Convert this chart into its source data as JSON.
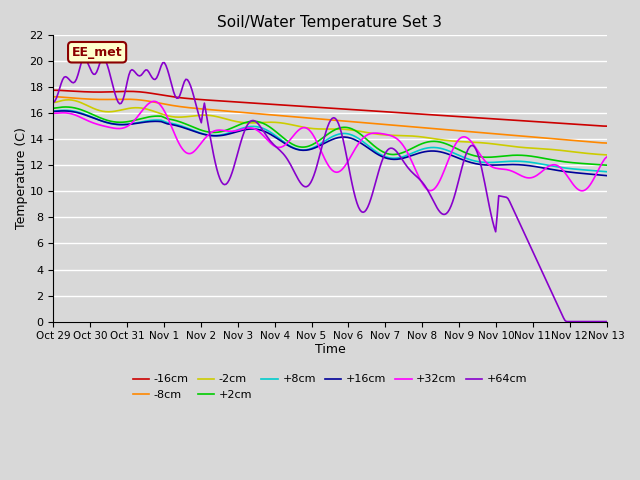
{
  "title": "Soil/Water Temperature Set 3",
  "xlabel": "Time",
  "ylabel": "Temperature (C)",
  "ylim": [
    0,
    22
  ],
  "yticks": [
    0,
    2,
    4,
    6,
    8,
    10,
    12,
    14,
    16,
    18,
    20,
    22
  ],
  "xtick_labels": [
    "Oct 29",
    "Oct 30",
    "Oct 31",
    "Nov 1",
    "Nov 2",
    "Nov 3",
    "Nov 4",
    "Nov 5",
    "Nov 6",
    "Nov 7",
    "Nov 8",
    "Nov 9",
    "Nov 10",
    "Nov 11",
    "Nov 12",
    "Nov 13"
  ],
  "background_color": "#d8d8d8",
  "annotation_text": "EE_met",
  "annotation_bg": "#ffffcc",
  "annotation_border": "#8b0000",
  "legend_entries": [
    "-16cm",
    "-8cm",
    "-2cm",
    "+2cm",
    "+8cm",
    "+16cm",
    "+32cm",
    "+64cm"
  ],
  "line_colors": [
    "#cc0000",
    "#ff8800",
    "#cccc00",
    "#00cc00",
    "#00cccc",
    "#000099",
    "#ff00ff",
    "#8800cc"
  ],
  "line_widths": [
    1.5,
    1.5,
    1.5,
    1.5,
    1.5,
    1.5,
    1.5,
    1.5
  ]
}
